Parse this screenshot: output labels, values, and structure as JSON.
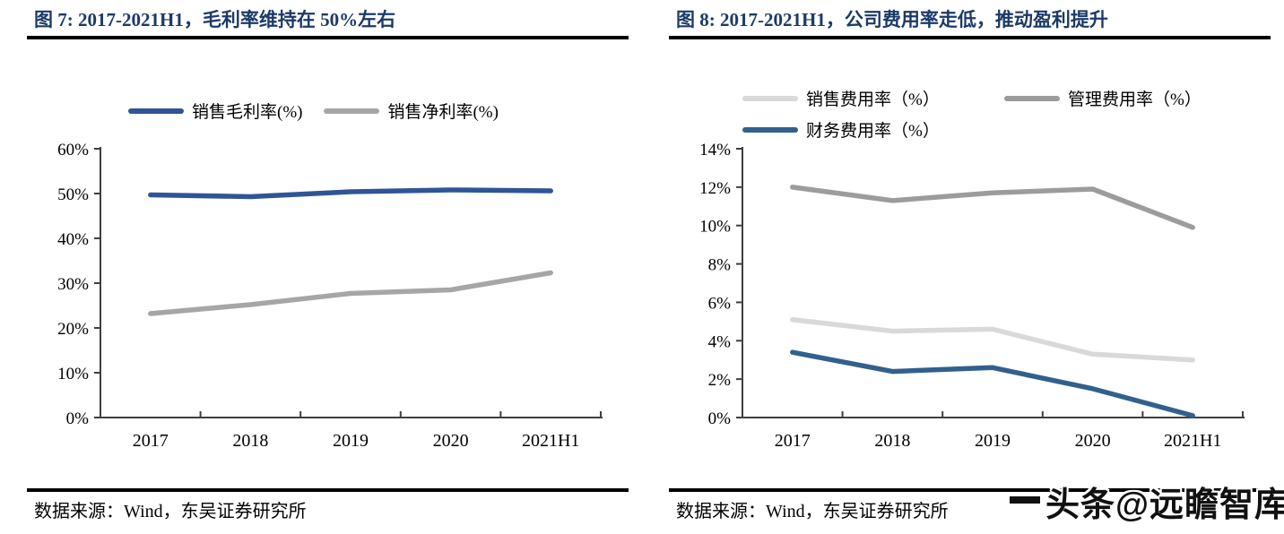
{
  "figures": [
    {
      "title": "图 7:  2017-2021H1，毛利率维持在 50%左右",
      "source": "数据来源：Wind，东吴证券研究所"
    },
    {
      "title": "图 8:  2017-2021H1，公司费用率走低，推动盈利提升",
      "source": "数据来源：Wind，东吴证券研究所"
    }
  ],
  "watermark": {
    "text": "头条@远瞻智库"
  },
  "colors": {
    "title_navy": "#1C3A68",
    "axis": "#3F3F3F",
    "rule_black": "#000000"
  },
  "chart_data": [
    {
      "type": "line",
      "title": "2017-2021H1，毛利率维持在 50%左右",
      "categories": [
        "2017",
        "2018",
        "2019",
        "2020",
        "2021H1"
      ],
      "series": [
        {
          "name": "销售毛利率(%)",
          "color": "#2F5597",
          "values": [
            49.7,
            49.3,
            50.4,
            50.8,
            50.6
          ]
        },
        {
          "name": "销售净利率(%)",
          "color": "#A6A6A6",
          "values": [
            23.2,
            25.2,
            27.7,
            28.5,
            32.3
          ]
        }
      ],
      "ylim": [
        0,
        60
      ],
      "ytick_labels": [
        "0%",
        "10%",
        "20%",
        "30%",
        "40%",
        "50%",
        "60%"
      ],
      "axis_color": "#3F3F3F",
      "grid": false,
      "legend_position": "top",
      "xlabel": "",
      "ylabel": ""
    },
    {
      "type": "line",
      "title": "2017-2021H1，公司费用率走低，推动盈利提升",
      "categories": [
        "2017",
        "2018",
        "2019",
        "2020",
        "2021H1"
      ],
      "series": [
        {
          "name": "销售费用率（%）",
          "color": "#D9D9D9",
          "values": [
            5.1,
            4.5,
            4.6,
            3.3,
            3.0
          ]
        },
        {
          "name": "管理费用率（%）",
          "color": "#9C9C9C",
          "values": [
            12.0,
            11.3,
            11.7,
            11.9,
            9.9
          ]
        },
        {
          "name": "财务费用率（%）",
          "color": "#32608E",
          "values": [
            3.4,
            2.4,
            2.6,
            1.5,
            0.1
          ]
        }
      ],
      "ylim": [
        0,
        14
      ],
      "ytick_labels": [
        "0%",
        "2%",
        "4%",
        "6%",
        "8%",
        "10%",
        "12%",
        "14%"
      ],
      "axis_color": "#3F3F3F",
      "grid": false,
      "legend_position": "top",
      "xlabel": "",
      "ylabel": ""
    }
  ]
}
